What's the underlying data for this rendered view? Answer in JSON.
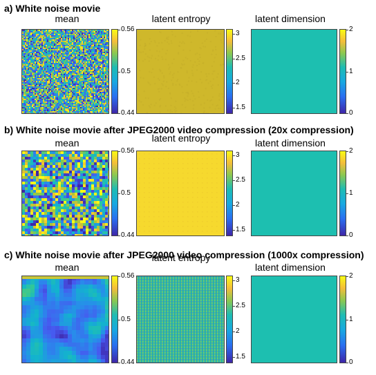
{
  "rows": [
    {
      "title": "a) White noise movie",
      "panels": [
        {
          "title": "mean",
          "kind": "noise-fine",
          "ticks": [
            "0.56",
            "0.5",
            "0.44"
          ]
        },
        {
          "title": "latent entropy",
          "kind": "flat-olive",
          "ticks": [
            "3",
            "2.5",
            "2",
            "1.5"
          ]
        },
        {
          "title": "latent dimension",
          "kind": "flat-teal",
          "ticks": [
            "2",
            "1",
            "0"
          ]
        }
      ]
    },
    {
      "title": "b) White noise movie after  JPEG2000 video compression (20x compression)",
      "panels": [
        {
          "title": "mean",
          "kind": "noise-medium",
          "ticks": [
            "0.56",
            "0.5",
            "0.44"
          ]
        },
        {
          "title": "latent entropy",
          "kind": "flat-yellow",
          "ticks": [
            "3",
            "2.5",
            "2",
            "1.5"
          ]
        },
        {
          "title": "latent dimension",
          "kind": "flat-teal",
          "ticks": [
            "2",
            "1",
            "0"
          ]
        }
      ]
    },
    {
      "title": "c) White noise movie after  JPEG2000 video compression (1000x compression)",
      "panels": [
        {
          "title": "mean",
          "kind": "noise-blobs",
          "ticks": [
            "0.56",
            "0.5",
            "0.44"
          ]
        },
        {
          "title": "latent entropy",
          "kind": "grid-pattern",
          "ticks": [
            "3",
            "2.5",
            "2",
            "1.5"
          ]
        },
        {
          "title": "latent dimension",
          "kind": "flat-teal",
          "ticks": [
            "2",
            "1",
            "0"
          ]
        }
      ]
    }
  ],
  "colors": {
    "parula_low": "#3e26a8",
    "parula_mid": "#1ebcb3",
    "parula_high": "#f9fb15",
    "teal": "#1dbfb0",
    "olive": "#cfb82b",
    "yellow": "#f6d92e"
  }
}
